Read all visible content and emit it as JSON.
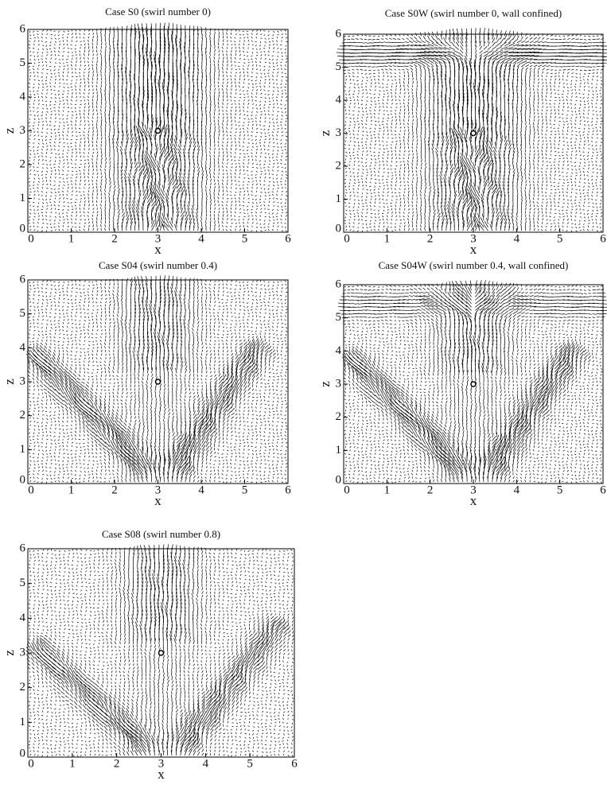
{
  "chart_data": [
    {
      "type": "quiver",
      "title": "Case S0 (swirl number 0)",
      "xlabel": "x",
      "ylabel": "z",
      "xlim": [
        0,
        6
      ],
      "ylim": [
        0,
        6
      ],
      "xticks": [
        0,
        1,
        2,
        3,
        4,
        5,
        6
      ],
      "yticks": [
        0,
        1,
        2,
        3,
        4,
        5,
        6
      ],
      "x": [
        3
      ],
      "y": [
        3
      ]
    },
    {
      "type": "quiver",
      "title": "Case S0W (swirl number 0, wall confined)",
      "xlabel": "x",
      "ylabel": "z",
      "xlim": [
        0,
        6
      ],
      "ylim": [
        0,
        6
      ],
      "xticks": [
        0,
        1,
        2,
        3,
        4,
        5,
        6
      ],
      "yticks": [
        0,
        1,
        2,
        3,
        4,
        5,
        6
      ],
      "x": [
        3
      ],
      "y": [
        3
      ]
    },
    {
      "type": "quiver",
      "title": "Case S04 (swirl number 0.4)",
      "xlabel": "x",
      "ylabel": "z",
      "xlim": [
        0,
        6
      ],
      "ylim": [
        0,
        6
      ],
      "xticks": [
        0,
        1,
        2,
        3,
        4,
        5,
        6
      ],
      "yticks": [
        0,
        1,
        2,
        3,
        4,
        5,
        6
      ],
      "x": [
        3
      ],
      "y": [
        3
      ]
    },
    {
      "type": "quiver",
      "title": "Case S04W (swirl number 0.4, wall confined)",
      "xlabel": "x",
      "ylabel": "z",
      "xlim": [
        0,
        6
      ],
      "ylim": [
        0,
        6
      ],
      "xticks": [
        0,
        1,
        2,
        3,
        4,
        5,
        6
      ],
      "yticks": [
        0,
        1,
        2,
        3,
        4,
        5,
        6
      ],
      "x": [
        3
      ],
      "y": [
        3
      ]
    },
    {
      "type": "quiver",
      "title": "Case S08 (swirl number 0.8)",
      "xlabel": "x",
      "ylabel": "z",
      "xlim": [
        0,
        6
      ],
      "ylim": [
        0,
        6
      ],
      "xticks": [
        0,
        1,
        2,
        3,
        4,
        5,
        6
      ],
      "yticks": [
        0,
        1,
        2,
        3,
        4,
        5,
        6
      ],
      "x": [
        3
      ],
      "y": [
        3
      ]
    }
  ]
}
